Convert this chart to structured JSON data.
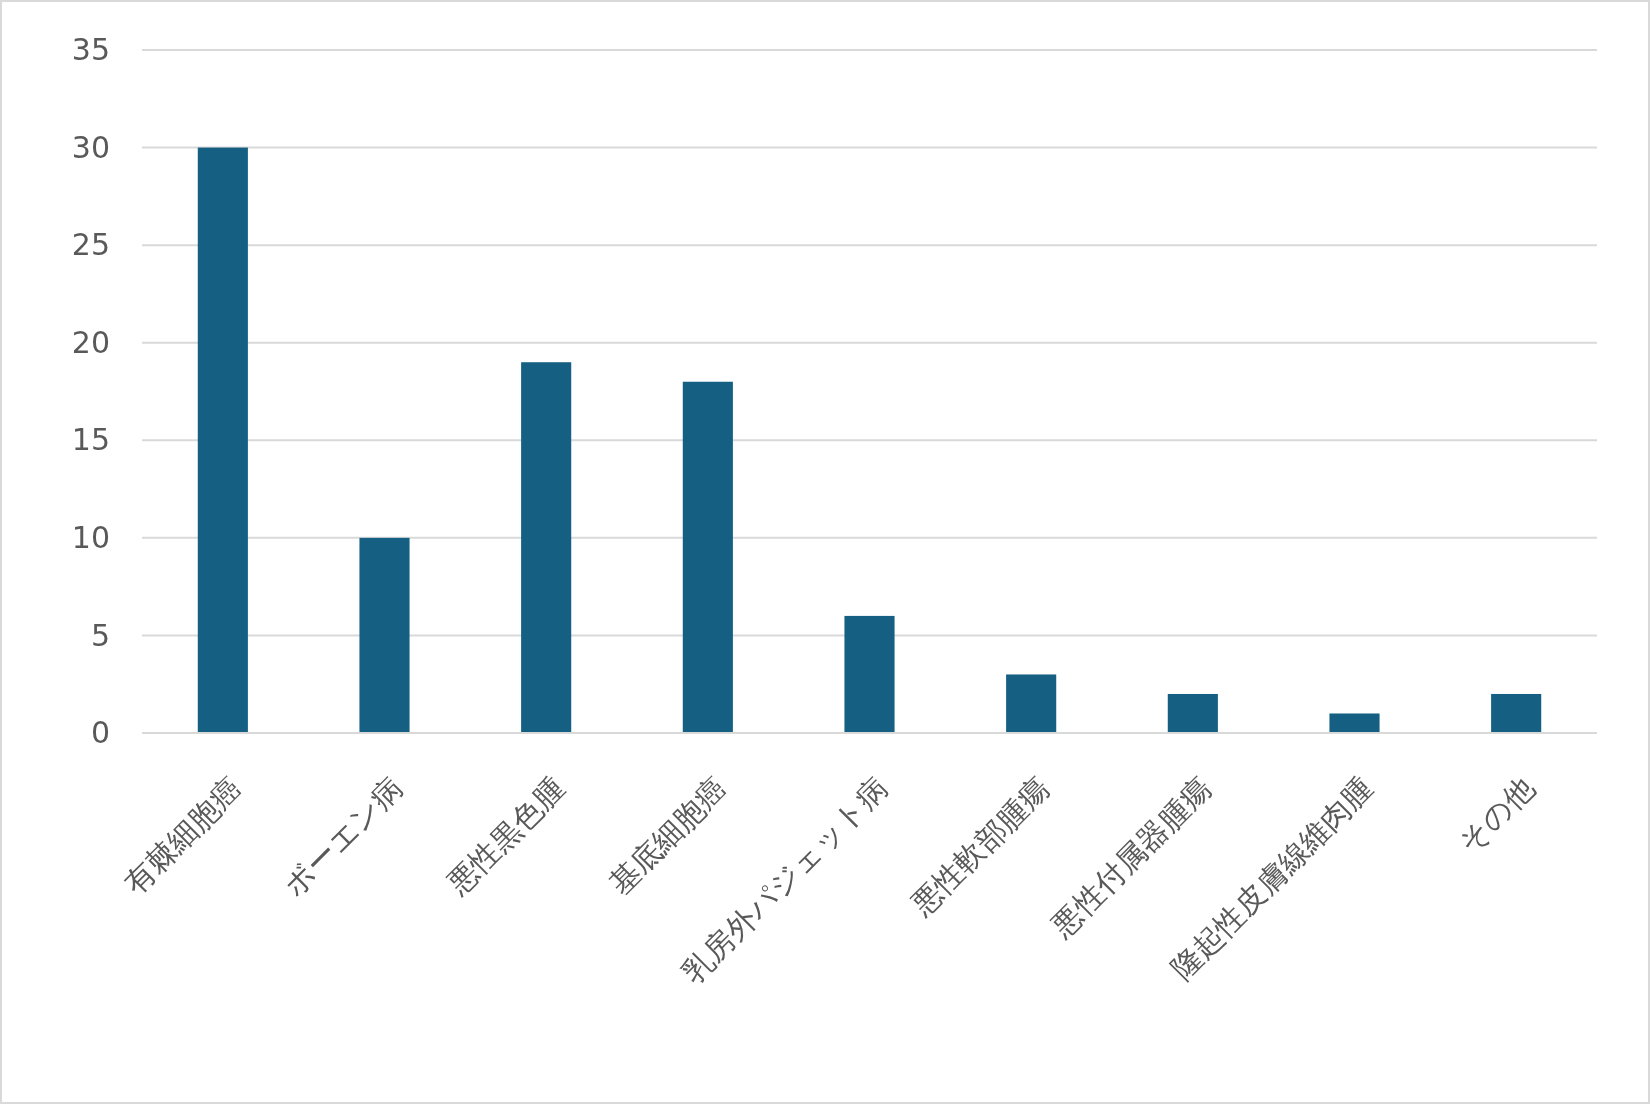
{
  "chart_data": {
    "type": "bar",
    "categories": [
      "有棘細胞癌",
      "ボーエン病",
      "悪性黒色腫",
      "基底細胞癌",
      "乳房外パジェット病",
      "悪性軟部腫瘍",
      "悪性付属器腫瘍",
      "隆起性皮膚線維肉腫",
      "その他"
    ],
    "values": [
      30,
      10,
      19,
      18,
      6,
      3,
      2,
      1,
      2
    ],
    "color": "#156082",
    "ylim": [
      0,
      35
    ],
    "yticks": [
      0,
      5,
      10,
      15,
      20,
      25,
      30,
      35
    ],
    "grid": true
  }
}
